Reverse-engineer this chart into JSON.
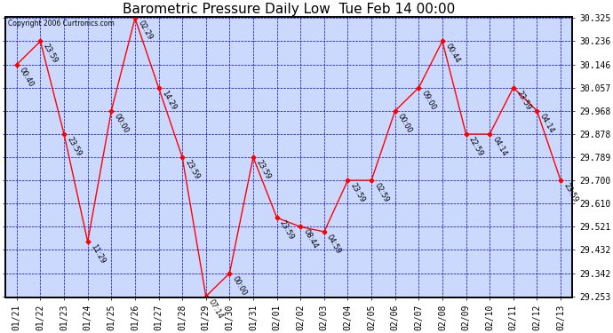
{
  "title": "Barometric Pressure Daily Low  Tue Feb 14 00:00",
  "copyright": "Copyright 2006 Curtronics.com",
  "x_labels": [
    "01/21",
    "01/22",
    "01/23",
    "01/24",
    "01/25",
    "01/26",
    "01/27",
    "01/28",
    "01/29",
    "01/30",
    "01/31",
    "02/01",
    "02/02",
    "02/03",
    "02/04",
    "02/05",
    "02/06",
    "02/07",
    "02/08",
    "02/09",
    "02/10",
    "02/11",
    "02/12",
    "02/13"
  ],
  "y_values": [
    30.146,
    30.236,
    29.878,
    29.464,
    29.968,
    30.325,
    30.057,
    29.789,
    29.253,
    29.342,
    29.789,
    29.556,
    29.521,
    29.502,
    29.7,
    29.7,
    29.968,
    30.057,
    30.236,
    29.878,
    29.878,
    30.057,
    29.968,
    29.7
  ],
  "point_labels": [
    "00:40",
    "23:59",
    "23:59",
    "11:29",
    "00:00",
    "02:29",
    "14:29",
    "23:59",
    "07:14",
    "00:00",
    "23:59",
    "23:59",
    "08:44",
    "04:59",
    "23:59",
    "02:59",
    "00:00",
    "09:00",
    "00:44",
    "22:59",
    "04:14",
    "23:59",
    "04:14",
    "23:59"
  ],
  "ylim_min": 29.253,
  "ylim_max": 30.325,
  "yticks": [
    29.253,
    29.342,
    29.432,
    29.521,
    29.61,
    29.7,
    29.789,
    29.878,
    29.968,
    30.057,
    30.146,
    30.236,
    30.325
  ],
  "line_color": "red",
  "marker_color": "red",
  "grid_color": "#0000bb",
  "plot_bg_color": "#ccd9ff",
  "title_fontsize": 11,
  "tick_fontsize": 7,
  "annot_fontsize": 6
}
